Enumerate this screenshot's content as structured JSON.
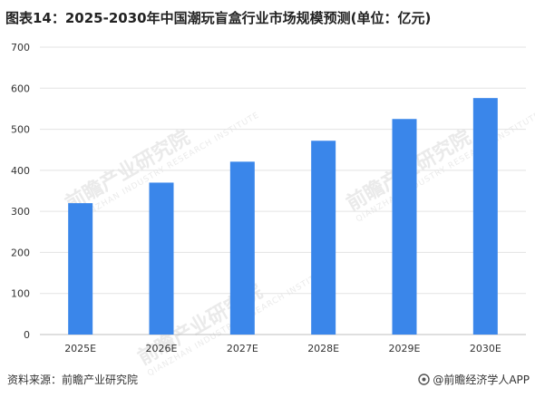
{
  "title": "图表14：2025-2030年中国潮玩盲盒行业市场规模预测(单位：亿元)",
  "chart_data": {
    "type": "bar",
    "categories": [
      "2025E",
      "2026E",
      "2027E",
      "2028E",
      "2029E",
      "2030E"
    ],
    "values": [
      320,
      370,
      421,
      472,
      525,
      576
    ],
    "yticks": [
      0,
      100,
      200,
      300,
      400,
      500,
      600,
      700
    ],
    "ylim": [
      0,
      700
    ],
    "grid": true,
    "bar_color": "#3a86ea"
  },
  "footer": {
    "source": "资料来源：前瞻产业研究院",
    "brand": "@前瞻经济学人APP"
  },
  "watermark": {
    "text": "前瞻产业研究院",
    "sub": "QIANZHAN INDUSTRY RESEARCH INSTITUTE"
  }
}
